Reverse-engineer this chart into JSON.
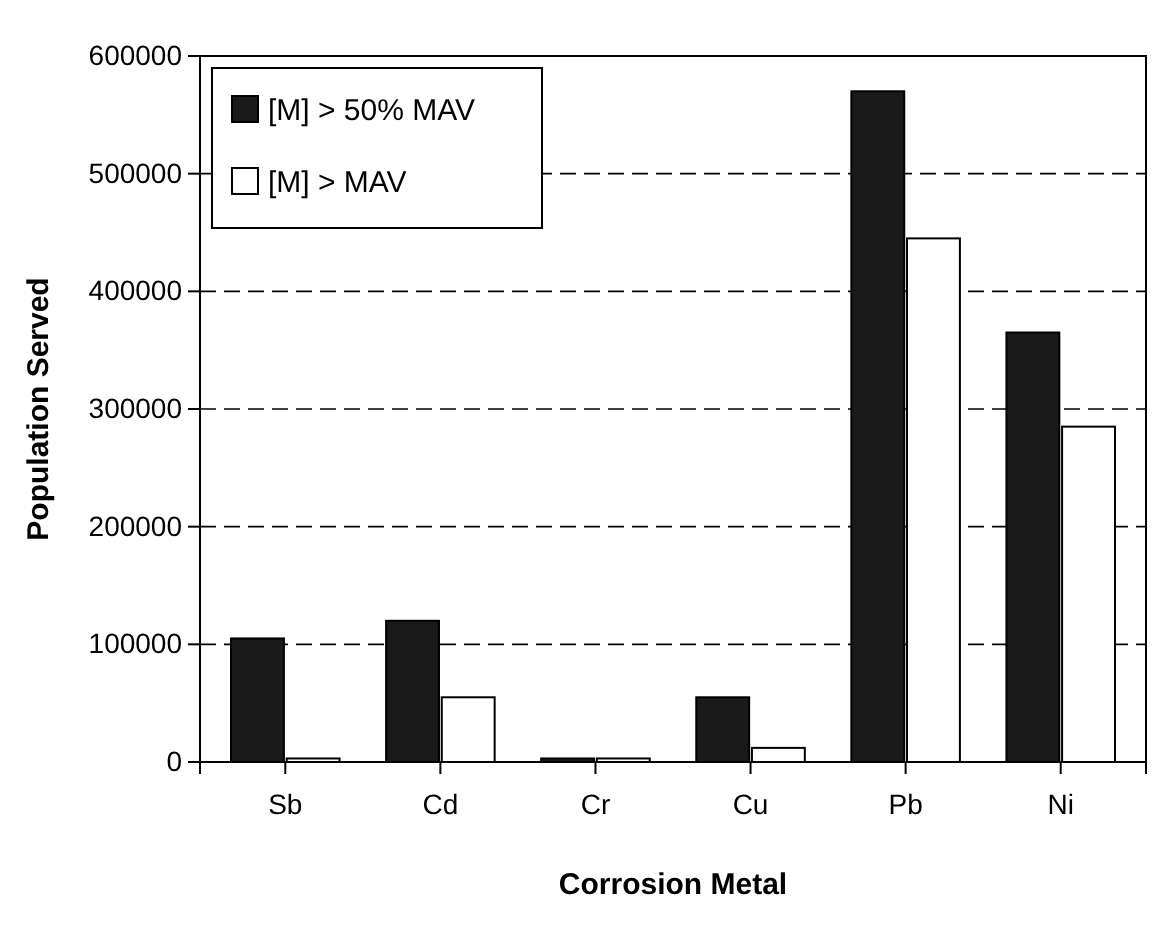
{
  "chart_data": {
    "type": "bar",
    "xlabel": "Corrosion Metal",
    "ylabel": "Population Served",
    "categories": [
      "Sb",
      "Cd",
      "Cr",
      "Cu",
      "Pb",
      "Ni"
    ],
    "series": [
      {
        "name": "[M] > 50% MAV",
        "color": "#1a1a1a",
        "values": [
          105000,
          120000,
          3000,
          55000,
          570000,
          365000
        ]
      },
      {
        "name": "[M] > MAV",
        "color": "#ffffff",
        "values": [
          3000,
          55000,
          3000,
          12000,
          445000,
          285000
        ]
      }
    ],
    "ylim": [
      0,
      600000
    ],
    "yticks": [
      0,
      100000,
      200000,
      300000,
      400000,
      500000,
      600000
    ],
    "grid": "y",
    "legend": "top left"
  }
}
